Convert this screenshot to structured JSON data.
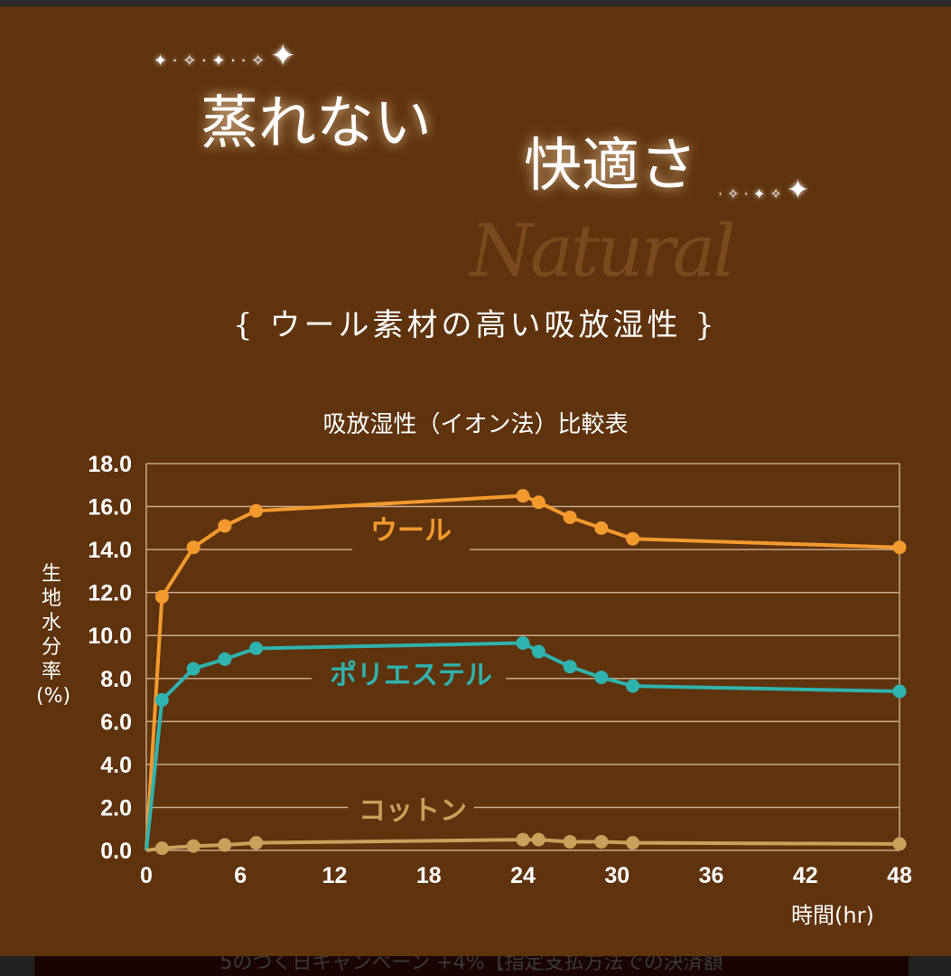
{
  "header": {
    "title_part1": "蒸れない",
    "title_part2": "快適さ",
    "watermark": "Natural",
    "subtitle": "{ ウール素材の高い吸放湿性 }"
  },
  "chart_data": {
    "type": "line",
    "title": "吸放湿性（イオン法）比較表",
    "xlabel": "時間(hr)",
    "ylabel": "生地水分率(%)",
    "xlim": [
      0,
      48
    ],
    "ylim": [
      0,
      18
    ],
    "xticks": [
      0,
      6,
      12,
      18,
      24,
      30,
      36,
      42,
      48
    ],
    "yticks": [
      "0.0",
      "2.0",
      "4.0",
      "6.0",
      "8.0",
      "10.0",
      "12.0",
      "14.0",
      "16.0",
      "18.0"
    ],
    "grid": true,
    "legend": "inline labels",
    "x": [
      0,
      1,
      3,
      5,
      7,
      24,
      25,
      27,
      29,
      31,
      48
    ],
    "series": [
      {
        "name": "ウール",
        "color": "#f39a2e",
        "values": [
          0,
          11.8,
          14.1,
          15.1,
          15.8,
          16.5,
          16.2,
          15.5,
          15.0,
          14.5,
          14.1
        ]
      },
      {
        "name": "ポリエステル",
        "color": "#2fb3ae",
        "values": [
          0,
          7.0,
          8.45,
          8.9,
          9.4,
          9.65,
          9.25,
          8.55,
          8.05,
          7.65,
          7.4
        ]
      },
      {
        "name": "コットン",
        "color": "#c9a15a",
        "values": [
          0,
          0.1,
          0.2,
          0.25,
          0.35,
          0.5,
          0.5,
          0.4,
          0.4,
          0.35,
          0.3
        ]
      }
    ]
  },
  "footer": {
    "text": "5のつく日キャンペーン +4%【指定支払方法での決済額"
  }
}
